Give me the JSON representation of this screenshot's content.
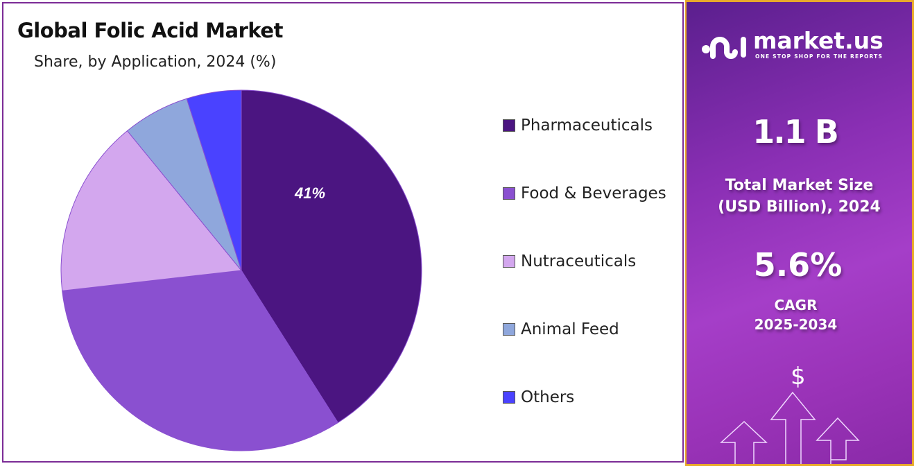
{
  "chart_data": {
    "type": "pie",
    "title": "Global Folic Acid Market",
    "subtitle": "Share, by Application, 2024 (%)",
    "categories": [
      "Pharmaceuticals",
      "Food & Beverages",
      "Nutraceuticals",
      "Animal Feed",
      "Others"
    ],
    "values": [
      41,
      32.2,
      15.9,
      6,
      4.9
    ],
    "colors": [
      "#4b1581",
      "#8a50d0",
      "#d3a7ee",
      "#8fa7dc",
      "#4a42ff"
    ],
    "data_labels": [
      {
        "category": "Pharmaceuticals",
        "text": "41%"
      }
    ],
    "legend_position": "right"
  },
  "panel": {
    "logo_name": "market.us",
    "logo_tagline": "ONE STOP SHOP FOR THE REPORTS",
    "market_size": "1.1 B",
    "market_size_label_1": "Total Market Size",
    "market_size_label_2": "(USD Billion), 2024",
    "cagr": "5.6%",
    "cagr_label": "CAGR",
    "cagr_period": "2025-2034",
    "dollar_symbol": "$"
  }
}
